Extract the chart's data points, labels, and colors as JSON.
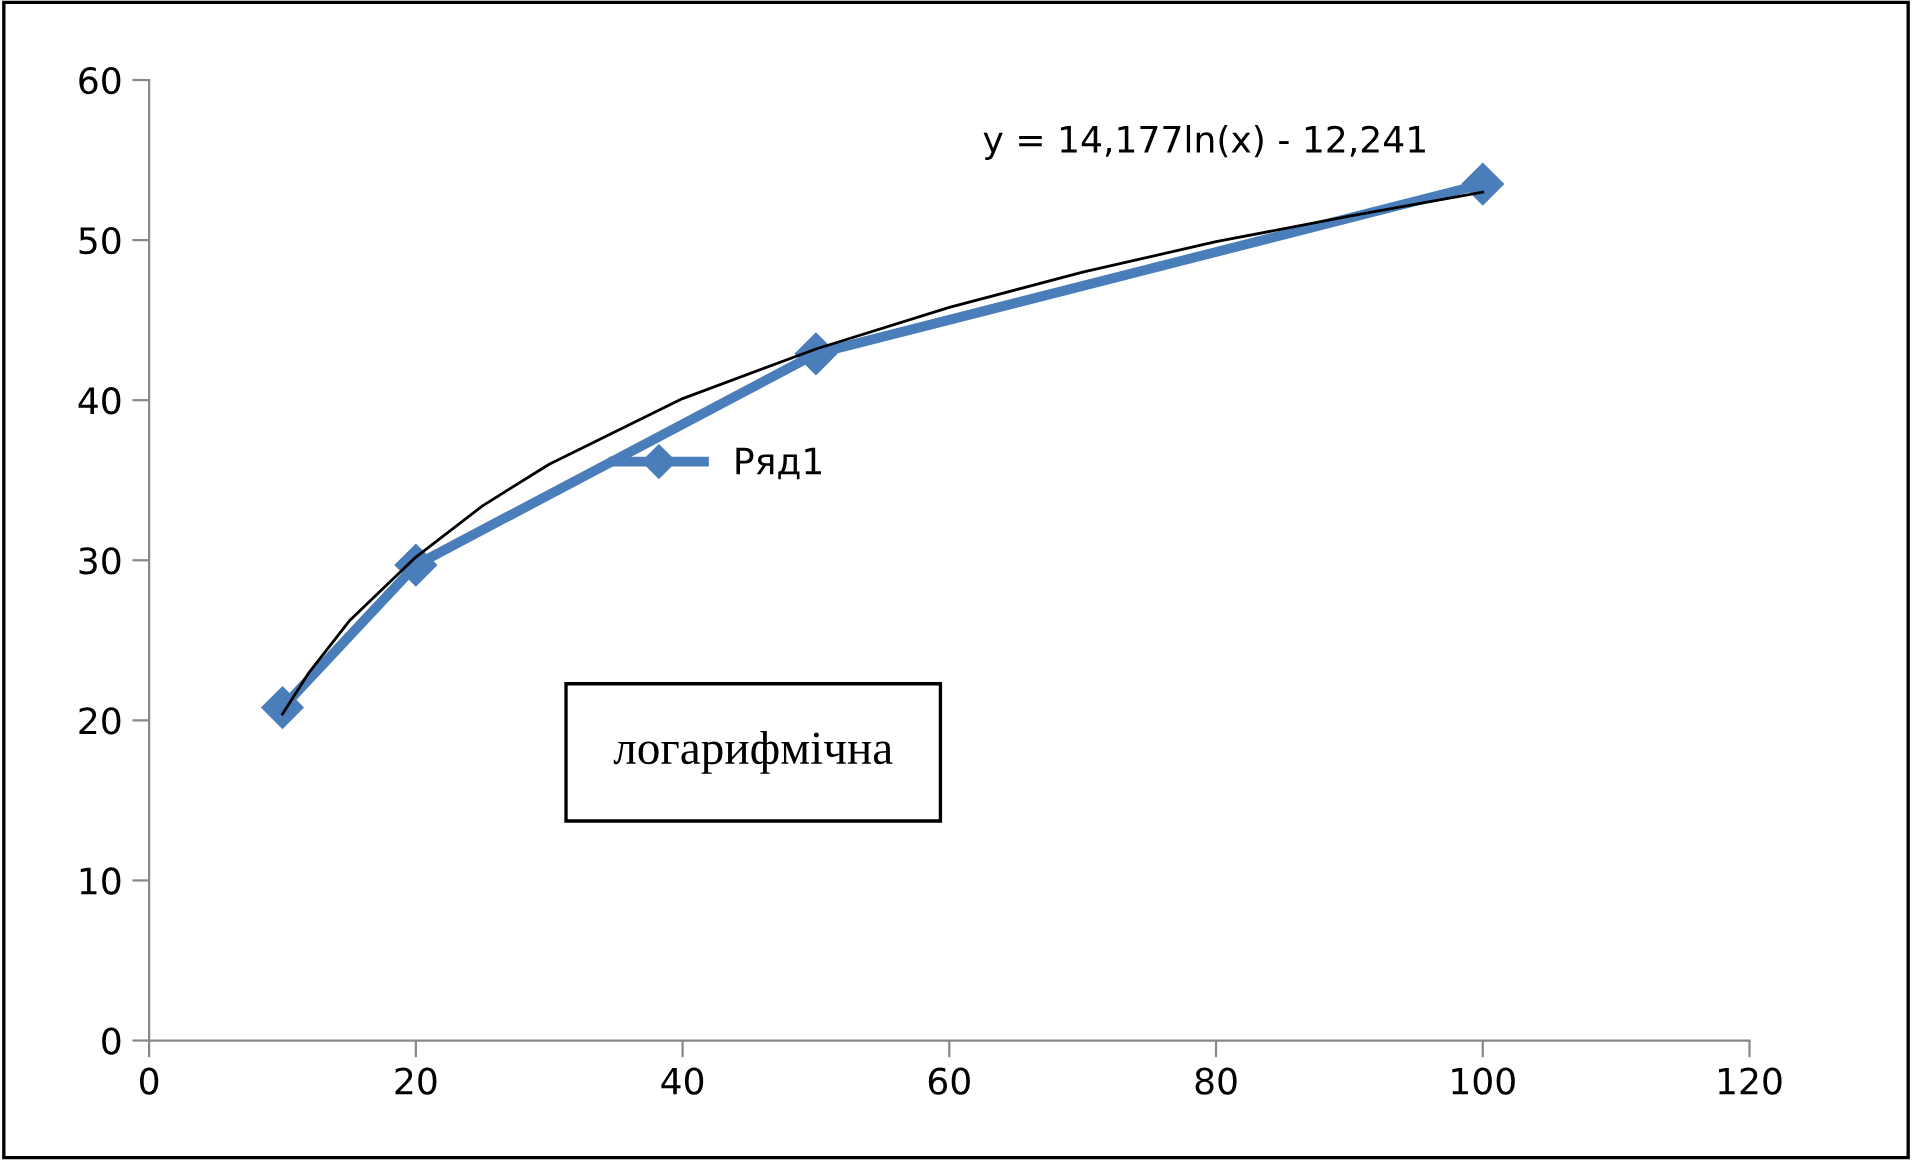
{
  "chart_data": {
    "type": "line",
    "series": [
      {
        "name": "Ряд1",
        "color": "#4a7ebb",
        "x": [
          10,
          20,
          50,
          100
        ],
        "values": [
          20.8,
          29.7,
          42.9,
          53.5
        ],
        "marker": "diamond"
      },
      {
        "type": "line",
        "color": "#000000",
        "x": [
          10,
          12,
          15,
          20,
          25,
          30,
          40,
          50,
          60,
          70,
          80,
          90,
          100
        ],
        "values": [
          20.4,
          23.0,
          26.2,
          30.2,
          33.4,
          36.0,
          40.1,
          43.2,
          45.8,
          48.0,
          49.9,
          51.5,
          53.0
        ],
        "marker": "none"
      }
    ],
    "xlim": [
      0,
      120
    ],
    "xticks": [
      0,
      20,
      40,
      60,
      80,
      100,
      120
    ],
    "ylim": [
      0,
      60
    ],
    "yticks": [
      0,
      10,
      20,
      30,
      40,
      50,
      60
    ],
    "grid": false,
    "legend": "left",
    "annotations": [
      "y = 14,177ln(x) - 12,241",
      "логарифмічна"
    ]
  }
}
